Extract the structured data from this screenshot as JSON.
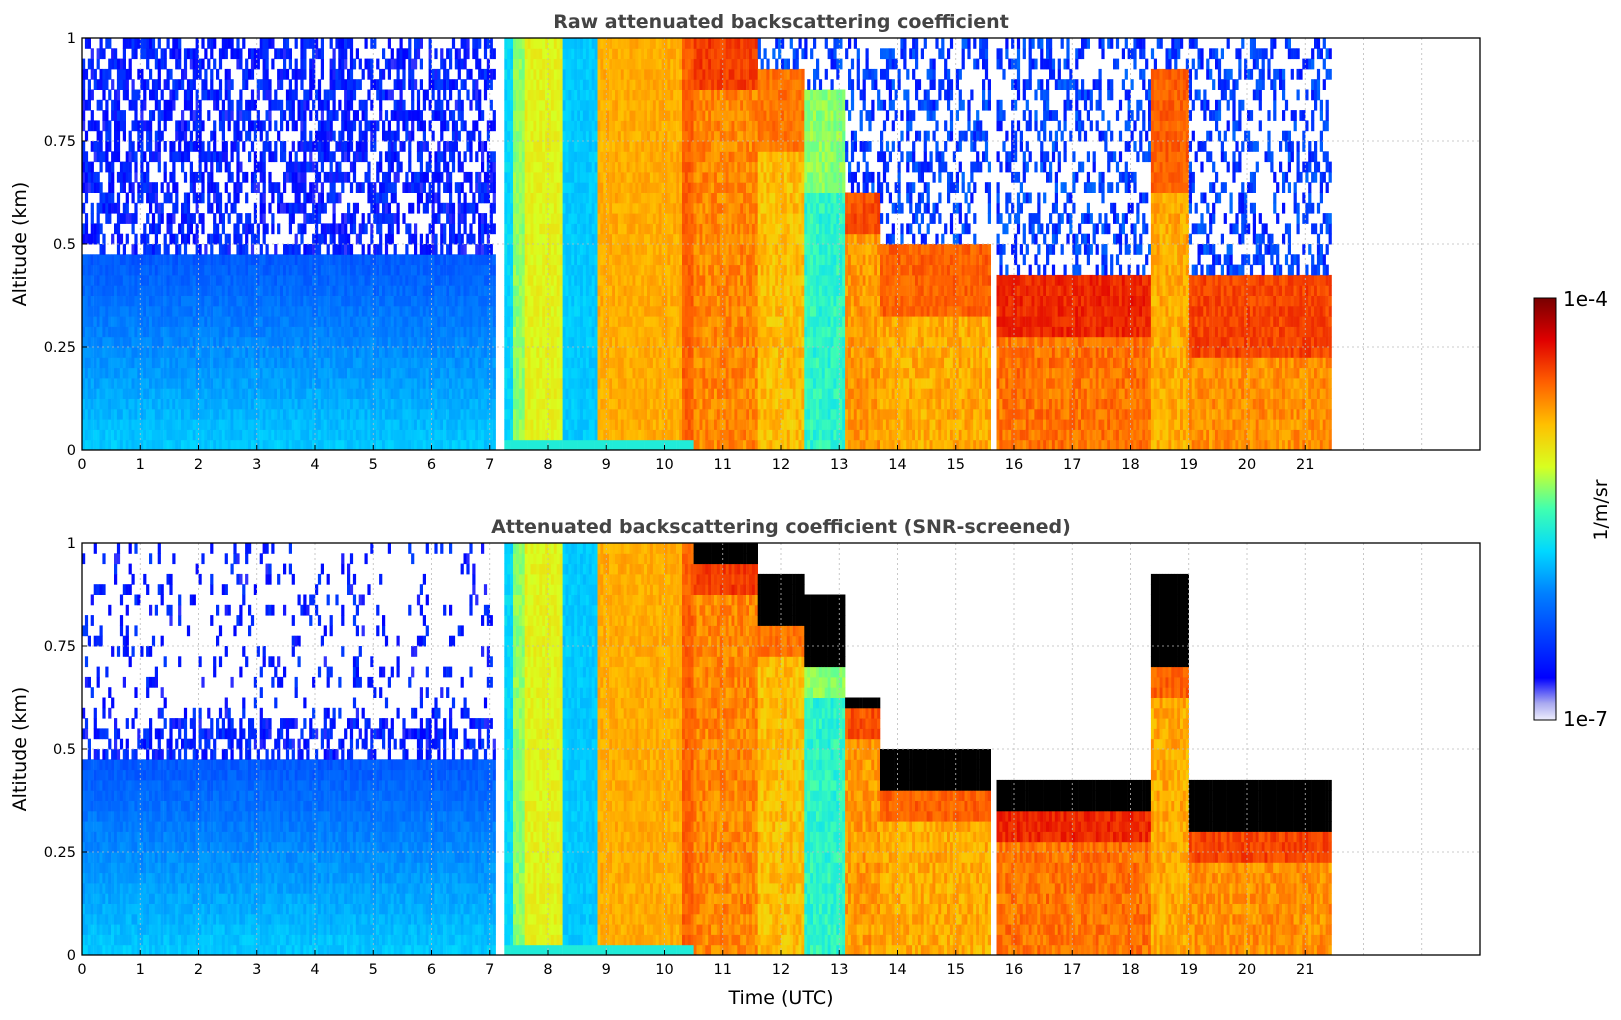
{
  "chart_data": [
    {
      "type": "heatmap",
      "title": "Raw attenuated backscattering coefficient",
      "xlabel": "",
      "ylabel": "Altitude (km)",
      "xlim": [
        0,
        24
      ],
      "ylim": [
        0,
        1
      ],
      "xticks": [
        "0",
        "1",
        "2",
        "3",
        "4",
        "5",
        "6",
        "7",
        "8",
        "9",
        "10",
        "11",
        "12",
        "13",
        "14",
        "15",
        "16",
        "17",
        "18",
        "19",
        "20",
        "21"
      ],
      "yticks": [
        "0",
        "0.25",
        "0.5",
        "0.75",
        "1"
      ],
      "grid": true,
      "data_extent_time": [
        0,
        21.45
      ],
      "segments": [
        {
          "t0": 0.0,
          "t1": 4.0,
          "top": 1.0,
          "cloud_base": null,
          "level": 0.22
        },
        {
          "t0": 4.0,
          "t1": 4.4,
          "top": 1.0,
          "cloud_base": null,
          "level": 0.3
        },
        {
          "t0": 4.4,
          "t1": 7.1,
          "top": 1.0,
          "cloud_base": null,
          "level": 0.22
        },
        {
          "t0": 7.1,
          "t1": 7.25,
          "top": 1.0,
          "cloud_base": null,
          "level": 0.0
        },
        {
          "t0": 7.25,
          "t1": 7.4,
          "top": 1.0,
          "cloud_base": null,
          "level": 0.4
        },
        {
          "t0": 7.4,
          "t1": 7.6,
          "top": 1.0,
          "cloud_base": null,
          "level": 0.55
        },
        {
          "t0": 7.6,
          "t1": 8.25,
          "top": 1.0,
          "cloud_base": null,
          "level": 0.62
        },
        {
          "t0": 8.25,
          "t1": 8.85,
          "top": 1.0,
          "cloud_base": null,
          "level": 0.38
        },
        {
          "t0": 8.85,
          "t1": 10.3,
          "top": 1.0,
          "cloud_base": null,
          "level": 0.72
        },
        {
          "t0": 10.3,
          "t1": 10.5,
          "top": 1.0,
          "cloud_base": null,
          "level": 0.8
        },
        {
          "t0": 10.5,
          "t1": 11.6,
          "top": 1.0,
          "cloud_base": 0.85,
          "level": 0.84
        },
        {
          "t0": 11.6,
          "t1": 12.4,
          "top": 0.9,
          "cloud_base": 0.7,
          "level": 0.78
        },
        {
          "t0": 12.4,
          "t1": 13.1,
          "top": 0.85,
          "cloud_base": 0.6,
          "level": 0.55
        },
        {
          "t0": 13.1,
          "t1": 13.7,
          "top": 0.6,
          "cloud_base": 0.5,
          "level": 0.82
        },
        {
          "t0": 13.7,
          "t1": 15.6,
          "top": 0.48,
          "cloud_base": 0.3,
          "level": 0.8
        },
        {
          "t0": 15.6,
          "t1": 15.7,
          "top": 0.0,
          "cloud_base": null,
          "level": 0.0
        },
        {
          "t0": 15.7,
          "t1": 18.35,
          "top": 0.42,
          "cloud_base": 0.25,
          "level": 0.86
        },
        {
          "t0": 18.35,
          "t1": 19.0,
          "top": 0.9,
          "cloud_base": 0.6,
          "level": 0.8
        },
        {
          "t0": 19.0,
          "t1": 21.45,
          "top": 0.42,
          "cloud_base": 0.2,
          "level": 0.83
        }
      ]
    },
    {
      "type": "heatmap",
      "title": "Attenuated backscattering coefficient (SNR-screened)",
      "xlabel": "Time (UTC)",
      "ylabel": "Altitude (km)",
      "xlim": [
        0,
        24
      ],
      "ylim": [
        0,
        1
      ],
      "xticks": [
        "0",
        "1",
        "2",
        "3",
        "4",
        "5",
        "6",
        "7",
        "8",
        "9",
        "10",
        "11",
        "12",
        "13",
        "14",
        "15",
        "16",
        "17",
        "18",
        "19",
        "20",
        "21"
      ],
      "yticks": [
        "0",
        "0.25",
        "0.5",
        "0.75",
        "1"
      ],
      "grid": true,
      "data_extent_time": [
        0,
        21.45
      ],
      "note_black": "black marks screened (attenuated) signal above cloud layer"
    }
  ],
  "colorbar": {
    "label": "1/m/sr",
    "max_label": "1e-4",
    "min_label": "1e-7",
    "colormap": [
      "#e8e8f8",
      "#0000ff",
      "#0080ff",
      "#00d0ff",
      "#60ffa0",
      "#e0ff20",
      "#ffc000",
      "#ff6000",
      "#e00000",
      "#800000"
    ]
  }
}
